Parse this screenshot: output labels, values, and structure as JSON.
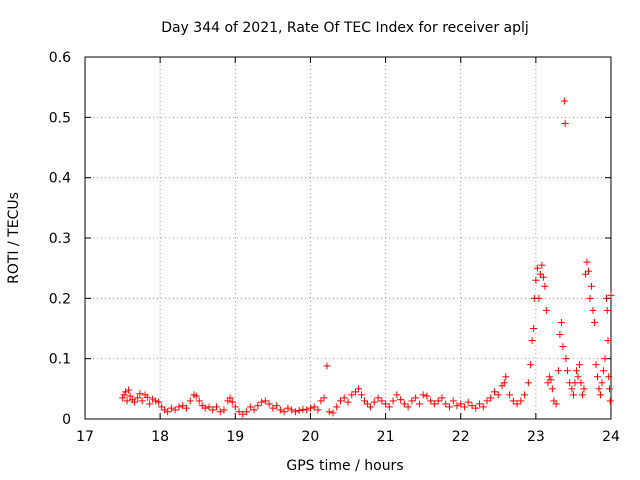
{
  "chart_data": {
    "type": "scatter",
    "title": "Day 344 of 2021, Rate Of TEC Index for receiver aplj",
    "xlabel": "GPS time / hours",
    "ylabel": "ROTI / TECUs",
    "xlim": [
      17,
      24
    ],
    "ylim": [
      0,
      0.6
    ],
    "x_ticks": [
      "17",
      "18",
      "19",
      "20",
      "21",
      "22",
      "23",
      "24"
    ],
    "y_ticks": [
      "0",
      "0.1",
      "0.2",
      "0.3",
      "0.4",
      "0.5",
      "0.6"
    ],
    "grid": true,
    "marker": "+",
    "series": [
      {
        "color": "#ff0000",
        "points": [
          [
            17.5,
            0.035
          ],
          [
            17.52,
            0.04
          ],
          [
            17.54,
            0.045
          ],
          [
            17.56,
            0.03
          ],
          [
            17.58,
            0.048
          ],
          [
            17.6,
            0.038
          ],
          [
            17.63,
            0.032
          ],
          [
            17.66,
            0.028
          ],
          [
            17.7,
            0.035
          ],
          [
            17.73,
            0.042
          ],
          [
            17.76,
            0.03
          ],
          [
            17.8,
            0.04
          ],
          [
            17.83,
            0.036
          ],
          [
            17.86,
            0.025
          ],
          [
            17.9,
            0.033
          ],
          [
            17.94,
            0.03
          ],
          [
            17.98,
            0.028
          ],
          [
            18.02,
            0.02
          ],
          [
            18.06,
            0.015
          ],
          [
            18.1,
            0.012
          ],
          [
            18.15,
            0.018
          ],
          [
            18.2,
            0.015
          ],
          [
            18.25,
            0.02
          ],
          [
            18.3,
            0.022
          ],
          [
            18.35,
            0.018
          ],
          [
            18.4,
            0.03
          ],
          [
            18.45,
            0.04
          ],
          [
            18.48,
            0.038
          ],
          [
            18.52,
            0.03
          ],
          [
            18.56,
            0.022
          ],
          [
            18.6,
            0.018
          ],
          [
            18.65,
            0.02
          ],
          [
            18.7,
            0.015
          ],
          [
            18.75,
            0.02
          ],
          [
            18.8,
            0.012
          ],
          [
            18.85,
            0.015
          ],
          [
            18.9,
            0.03
          ],
          [
            18.93,
            0.035
          ],
          [
            18.96,
            0.028
          ],
          [
            19.0,
            0.02
          ],
          [
            19.05,
            0.012
          ],
          [
            19.1,
            0.008
          ],
          [
            19.15,
            0.012
          ],
          [
            19.2,
            0.02
          ],
          [
            19.25,
            0.015
          ],
          [
            19.3,
            0.022
          ],
          [
            19.35,
            0.028
          ],
          [
            19.4,
            0.03
          ],
          [
            19.45,
            0.025
          ],
          [
            19.5,
            0.018
          ],
          [
            19.55,
            0.022
          ],
          [
            19.6,
            0.015
          ],
          [
            19.65,
            0.012
          ],
          [
            19.7,
            0.018
          ],
          [
            19.75,
            0.015
          ],
          [
            19.8,
            0.012
          ],
          [
            19.85,
            0.014
          ],
          [
            19.9,
            0.016
          ],
          [
            19.95,
            0.015
          ],
          [
            20.0,
            0.018
          ],
          [
            20.05,
            0.02
          ],
          [
            20.1,
            0.015
          ],
          [
            20.14,
            0.03
          ],
          [
            20.18,
            0.035
          ],
          [
            20.22,
            0.088
          ],
          [
            20.25,
            0.012
          ],
          [
            20.3,
            0.01
          ],
          [
            20.35,
            0.02
          ],
          [
            20.4,
            0.03
          ],
          [
            20.45,
            0.035
          ],
          [
            20.5,
            0.028
          ],
          [
            20.55,
            0.04
          ],
          [
            20.6,
            0.045
          ],
          [
            20.64,
            0.05
          ],
          [
            20.68,
            0.04
          ],
          [
            20.72,
            0.03
          ],
          [
            20.76,
            0.025
          ],
          [
            20.8,
            0.02
          ],
          [
            20.85,
            0.028
          ],
          [
            20.9,
            0.035
          ],
          [
            20.95,
            0.03
          ],
          [
            21.0,
            0.025
          ],
          [
            21.05,
            0.02
          ],
          [
            21.1,
            0.03
          ],
          [
            21.15,
            0.04
          ],
          [
            21.2,
            0.032
          ],
          [
            21.25,
            0.025
          ],
          [
            21.3,
            0.02
          ],
          [
            21.35,
            0.03
          ],
          [
            21.4,
            0.035
          ],
          [
            21.45,
            0.025
          ],
          [
            21.5,
            0.04
          ],
          [
            21.55,
            0.038
          ],
          [
            21.6,
            0.03
          ],
          [
            21.65,
            0.025
          ],
          [
            21.7,
            0.03
          ],
          [
            21.75,
            0.035
          ],
          [
            21.8,
            0.025
          ],
          [
            21.85,
            0.02
          ],
          [
            21.9,
            0.03
          ],
          [
            21.95,
            0.022
          ],
          [
            22.0,
            0.025
          ],
          [
            22.05,
            0.02
          ],
          [
            22.1,
            0.028
          ],
          [
            22.15,
            0.022
          ],
          [
            22.2,
            0.018
          ],
          [
            22.25,
            0.025
          ],
          [
            22.3,
            0.02
          ],
          [
            22.35,
            0.03
          ],
          [
            22.4,
            0.035
          ],
          [
            22.45,
            0.045
          ],
          [
            22.5,
            0.04
          ],
          [
            22.55,
            0.055
          ],
          [
            22.58,
            0.06
          ],
          [
            22.6,
            0.07
          ],
          [
            22.65,
            0.04
          ],
          [
            22.7,
            0.03
          ],
          [
            22.75,
            0.025
          ],
          [
            22.8,
            0.03
          ],
          [
            22.85,
            0.04
          ],
          [
            22.9,
            0.06
          ],
          [
            22.93,
            0.09
          ],
          [
            22.95,
            0.13
          ],
          [
            22.97,
            0.15
          ],
          [
            22.98,
            0.2
          ],
          [
            23.0,
            0.23
          ],
          [
            23.02,
            0.25
          ],
          [
            23.04,
            0.2
          ],
          [
            23.06,
            0.24
          ],
          [
            23.08,
            0.255
          ],
          [
            23.1,
            0.235
          ],
          [
            23.12,
            0.22
          ],
          [
            23.14,
            0.18
          ],
          [
            23.16,
            0.06
          ],
          [
            23.18,
            0.07
          ],
          [
            23.2,
            0.065
          ],
          [
            23.22,
            0.05
          ],
          [
            23.24,
            0.03
          ],
          [
            23.27,
            0.025
          ],
          [
            23.3,
            0.08
          ],
          [
            23.32,
            0.14
          ],
          [
            23.34,
            0.16
          ],
          [
            23.36,
            0.12
          ],
          [
            23.38,
            0.527
          ],
          [
            23.39,
            0.49
          ],
          [
            23.4,
            0.1
          ],
          [
            23.42,
            0.08
          ],
          [
            23.45,
            0.06
          ],
          [
            23.48,
            0.05
          ],
          [
            23.5,
            0.04
          ],
          [
            23.52,
            0.06
          ],
          [
            23.54,
            0.08
          ],
          [
            23.56,
            0.07
          ],
          [
            23.58,
            0.09
          ],
          [
            23.6,
            0.06
          ],
          [
            23.62,
            0.04
          ],
          [
            23.64,
            0.05
          ],
          [
            23.66,
            0.24
          ],
          [
            23.68,
            0.26
          ],
          [
            23.7,
            0.245
          ],
          [
            23.72,
            0.2
          ],
          [
            23.74,
            0.22
          ],
          [
            23.76,
            0.18
          ],
          [
            23.78,
            0.16
          ],
          [
            23.8,
            0.09
          ],
          [
            23.82,
            0.07
          ],
          [
            23.84,
            0.05
          ],
          [
            23.86,
            0.04
          ],
          [
            23.88,
            0.06
          ],
          [
            23.9,
            0.08
          ],
          [
            23.92,
            0.1
          ],
          [
            23.94,
            0.2
          ],
          [
            23.95,
            0.18
          ],
          [
            23.96,
            0.13
          ],
          [
            23.97,
            0.07
          ],
          [
            23.98,
            0.05
          ],
          [
            23.99,
            0.03
          ],
          [
            24.0,
            0.205
          ]
        ]
      }
    ]
  }
}
